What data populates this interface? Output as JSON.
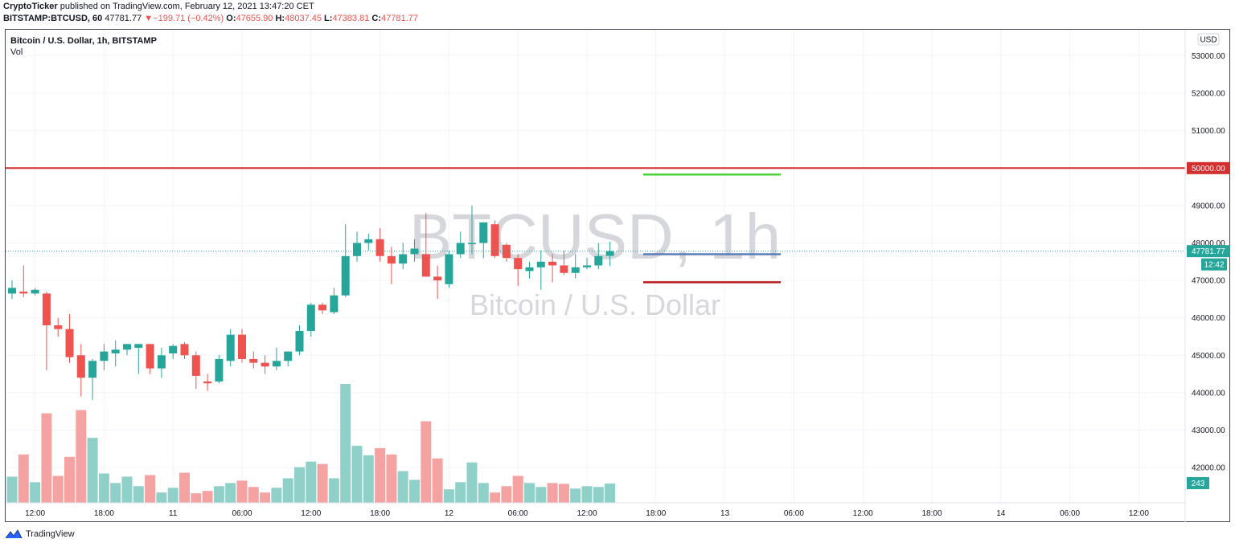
{
  "header": {
    "author": "CryptoTicker",
    "published": "published on TradingView.com, February 12, 2021 13:47:20 CET",
    "symbol": "BITSTAMP:BTCUSD, 60",
    "last": "47781.77",
    "change_arrow": "▼",
    "change": "−199.71 (−0.42%)",
    "o_label": "O:",
    "o": "47655.90",
    "h_label": "H:",
    "h": "48037.45",
    "l_label": "L:",
    "l": "47383.81",
    "c_label": "C:",
    "c": "47781.77"
  },
  "legend": {
    "title": "Bitcoin / U.S. Dollar, 1h, BITSTAMP",
    "vol_label": "Vol"
  },
  "watermark": {
    "symbol": "BTCUSD, 1h",
    "name": "Bitcoin / U.S. Dollar"
  },
  "footer": {
    "brand": "TradingView",
    "icon": "tradingview-logo-icon"
  },
  "chart_data": {
    "type": "candlestick",
    "currency": "USD",
    "y_ticks": [
      42000,
      43000,
      44000,
      45000,
      46000,
      47000,
      48000,
      49000,
      50000,
      51000,
      52000,
      53000
    ],
    "y_tick_labels": [
      "42000.00",
      "43000.00",
      "44000.00",
      "45000.00",
      "46000.00",
      "47000.00",
      "48000.00",
      "49000.00",
      "50000.00",
      "51000.00",
      "52000.00",
      "53000.00"
    ],
    "ylim": [
      41000,
      53400
    ],
    "x_ticks": [
      {
        "label": "12:00",
        "index": 2
      },
      {
        "label": "18:00",
        "index": 8
      },
      {
        "label": "11",
        "index": 14
      },
      {
        "label": "06:00",
        "index": 20
      },
      {
        "label": "12:00",
        "index": 26
      },
      {
        "label": "18:00",
        "index": 32
      },
      {
        "label": "12",
        "index": 38
      },
      {
        "label": "06:00",
        "index": 44
      },
      {
        "label": "12:00",
        "index": 50
      },
      {
        "label": "18:00",
        "index": 56
      },
      {
        "label": "13",
        "index": 62
      },
      {
        "label": "06:00",
        "index": 68
      },
      {
        "label": "12:00",
        "index": 74
      },
      {
        "label": "18:00",
        "index": 80
      },
      {
        "label": "14",
        "index": 86
      },
      {
        "label": "06:00",
        "index": 92
      },
      {
        "label": "12:00",
        "index": 98
      }
    ],
    "candles": [
      {
        "o": 46650,
        "h": 47000,
        "l": 46500,
        "c": 46800,
        "v": 330
      },
      {
        "o": 46700,
        "h": 47400,
        "l": 46550,
        "c": 46650,
        "v": 610
      },
      {
        "o": 46650,
        "h": 46800,
        "l": 46600,
        "c": 46750,
        "v": 260
      },
      {
        "o": 46650,
        "h": 46700,
        "l": 44600,
        "c": 45800,
        "v": 1130
      },
      {
        "o": 45800,
        "h": 46000,
        "l": 45500,
        "c": 45700,
        "v": 340
      },
      {
        "o": 45700,
        "h": 46100,
        "l": 44800,
        "c": 44950,
        "v": 580
      },
      {
        "o": 45000,
        "h": 45300,
        "l": 43900,
        "c": 44400,
        "v": 1170
      },
      {
        "o": 44400,
        "h": 44900,
        "l": 43800,
        "c": 44850,
        "v": 820
      },
      {
        "o": 44850,
        "h": 45300,
        "l": 44600,
        "c": 45100,
        "v": 370
      },
      {
        "o": 45050,
        "h": 45400,
        "l": 44700,
        "c": 45150,
        "v": 250
      },
      {
        "o": 45150,
        "h": 45300,
        "l": 45000,
        "c": 45300,
        "v": 330
      },
      {
        "o": 45200,
        "h": 45300,
        "l": 44500,
        "c": 45300,
        "v": 210
      },
      {
        "o": 45300,
        "h": 45300,
        "l": 44500,
        "c": 44650,
        "v": 350
      },
      {
        "o": 44650,
        "h": 45200,
        "l": 44400,
        "c": 45000,
        "v": 130
      },
      {
        "o": 45050,
        "h": 45300,
        "l": 44900,
        "c": 45250,
        "v": 190
      },
      {
        "o": 45300,
        "h": 45350,
        "l": 44900,
        "c": 45000,
        "v": 380
      },
      {
        "o": 45000,
        "h": 45100,
        "l": 44100,
        "c": 44450,
        "v": 120
      },
      {
        "o": 44300,
        "h": 44500,
        "l": 44050,
        "c": 44250,
        "v": 150
      },
      {
        "o": 44300,
        "h": 45000,
        "l": 44250,
        "c": 44900,
        "v": 210
      },
      {
        "o": 44850,
        "h": 45700,
        "l": 44700,
        "c": 45550,
        "v": 250
      },
      {
        "o": 45550,
        "h": 45700,
        "l": 44800,
        "c": 44900,
        "v": 280
      },
      {
        "o": 44900,
        "h": 45100,
        "l": 44650,
        "c": 44800,
        "v": 200
      },
      {
        "o": 44800,
        "h": 45000,
        "l": 44500,
        "c": 44700,
        "v": 130
      },
      {
        "o": 44700,
        "h": 45200,
        "l": 44600,
        "c": 44850,
        "v": 190
      },
      {
        "o": 44850,
        "h": 45100,
        "l": 44700,
        "c": 45100,
        "v": 310
      },
      {
        "o": 45100,
        "h": 45800,
        "l": 45000,
        "c": 45650,
        "v": 450
      },
      {
        "o": 45650,
        "h": 46400,
        "l": 45500,
        "c": 46350,
        "v": 520
      },
      {
        "o": 46350,
        "h": 46400,
        "l": 46100,
        "c": 46200,
        "v": 490
      },
      {
        "o": 46150,
        "h": 46800,
        "l": 46100,
        "c": 46600,
        "v": 310
      },
      {
        "o": 46600,
        "h": 48500,
        "l": 46550,
        "c": 47650,
        "v": 1500
      },
      {
        "o": 47650,
        "h": 48300,
        "l": 47500,
        "c": 48000,
        "v": 720
      },
      {
        "o": 48000,
        "h": 48250,
        "l": 47800,
        "c": 48100,
        "v": 600
      },
      {
        "o": 48100,
        "h": 48400,
        "l": 47500,
        "c": 47650,
        "v": 690
      },
      {
        "o": 47650,
        "h": 47900,
        "l": 46900,
        "c": 47450,
        "v": 610
      },
      {
        "o": 47450,
        "h": 48000,
        "l": 47300,
        "c": 47700,
        "v": 400
      },
      {
        "o": 47700,
        "h": 48100,
        "l": 47500,
        "c": 47850,
        "v": 290
      },
      {
        "o": 47700,
        "h": 48800,
        "l": 47100,
        "c": 47100,
        "v": 1030
      },
      {
        "o": 47100,
        "h": 47400,
        "l": 46500,
        "c": 47000,
        "v": 560
      },
      {
        "o": 46900,
        "h": 47800,
        "l": 46800,
        "c": 47700,
        "v": 170
      },
      {
        "o": 47700,
        "h": 48300,
        "l": 47600,
        "c": 48000,
        "v": 260
      },
      {
        "o": 48000,
        "h": 49000,
        "l": 47700,
        "c": 48000,
        "v": 510
      },
      {
        "o": 48000,
        "h": 48550,
        "l": 47600,
        "c": 48550,
        "v": 250
      },
      {
        "o": 48500,
        "h": 48600,
        "l": 47600,
        "c": 47650,
        "v": 130
      },
      {
        "o": 47950,
        "h": 48000,
        "l": 47500,
        "c": 47600,
        "v": 210
      },
      {
        "o": 47600,
        "h": 47700,
        "l": 46850,
        "c": 47300,
        "v": 340
      },
      {
        "o": 47250,
        "h": 47500,
        "l": 47050,
        "c": 47350,
        "v": 250
      },
      {
        "o": 47350,
        "h": 47800,
        "l": 46750,
        "c": 47500,
        "v": 200
      },
      {
        "o": 47500,
        "h": 47700,
        "l": 46950,
        "c": 47400,
        "v": 250
      },
      {
        "o": 47400,
        "h": 47800,
        "l": 47150,
        "c": 47200,
        "v": 240
      },
      {
        "o": 47200,
        "h": 47700,
        "l": 47050,
        "c": 47350,
        "v": 180
      },
      {
        "o": 47350,
        "h": 47600,
        "l": 47300,
        "c": 47400,
        "v": 210
      },
      {
        "o": 47400,
        "h": 48000,
        "l": 47300,
        "c": 47650,
        "v": 200
      },
      {
        "o": 47655.9,
        "h": 48037.45,
        "l": 47383.81,
        "c": 47781.77,
        "v": 243
      }
    ],
    "vol_max": 1500,
    "horizontal_lines": [
      {
        "price": 50000,
        "color": "#d32f2f",
        "label": "50000.00"
      }
    ],
    "target_segments": [
      {
        "price": 49830,
        "color": "#4cd137"
      },
      {
        "price": 47700,
        "color": "#5b7fb8"
      },
      {
        "price": 46950,
        "color": "#b71c1c"
      }
    ],
    "last_price": {
      "price": 47781.77,
      "label": "47781.77",
      "countdown": "12:42"
    },
    "last_volume_label": "243",
    "colors": {
      "up": "#26a69a",
      "down": "#ef5350",
      "vol_up": "#8fd0c9",
      "vol_down": "#f5a3a2"
    }
  }
}
